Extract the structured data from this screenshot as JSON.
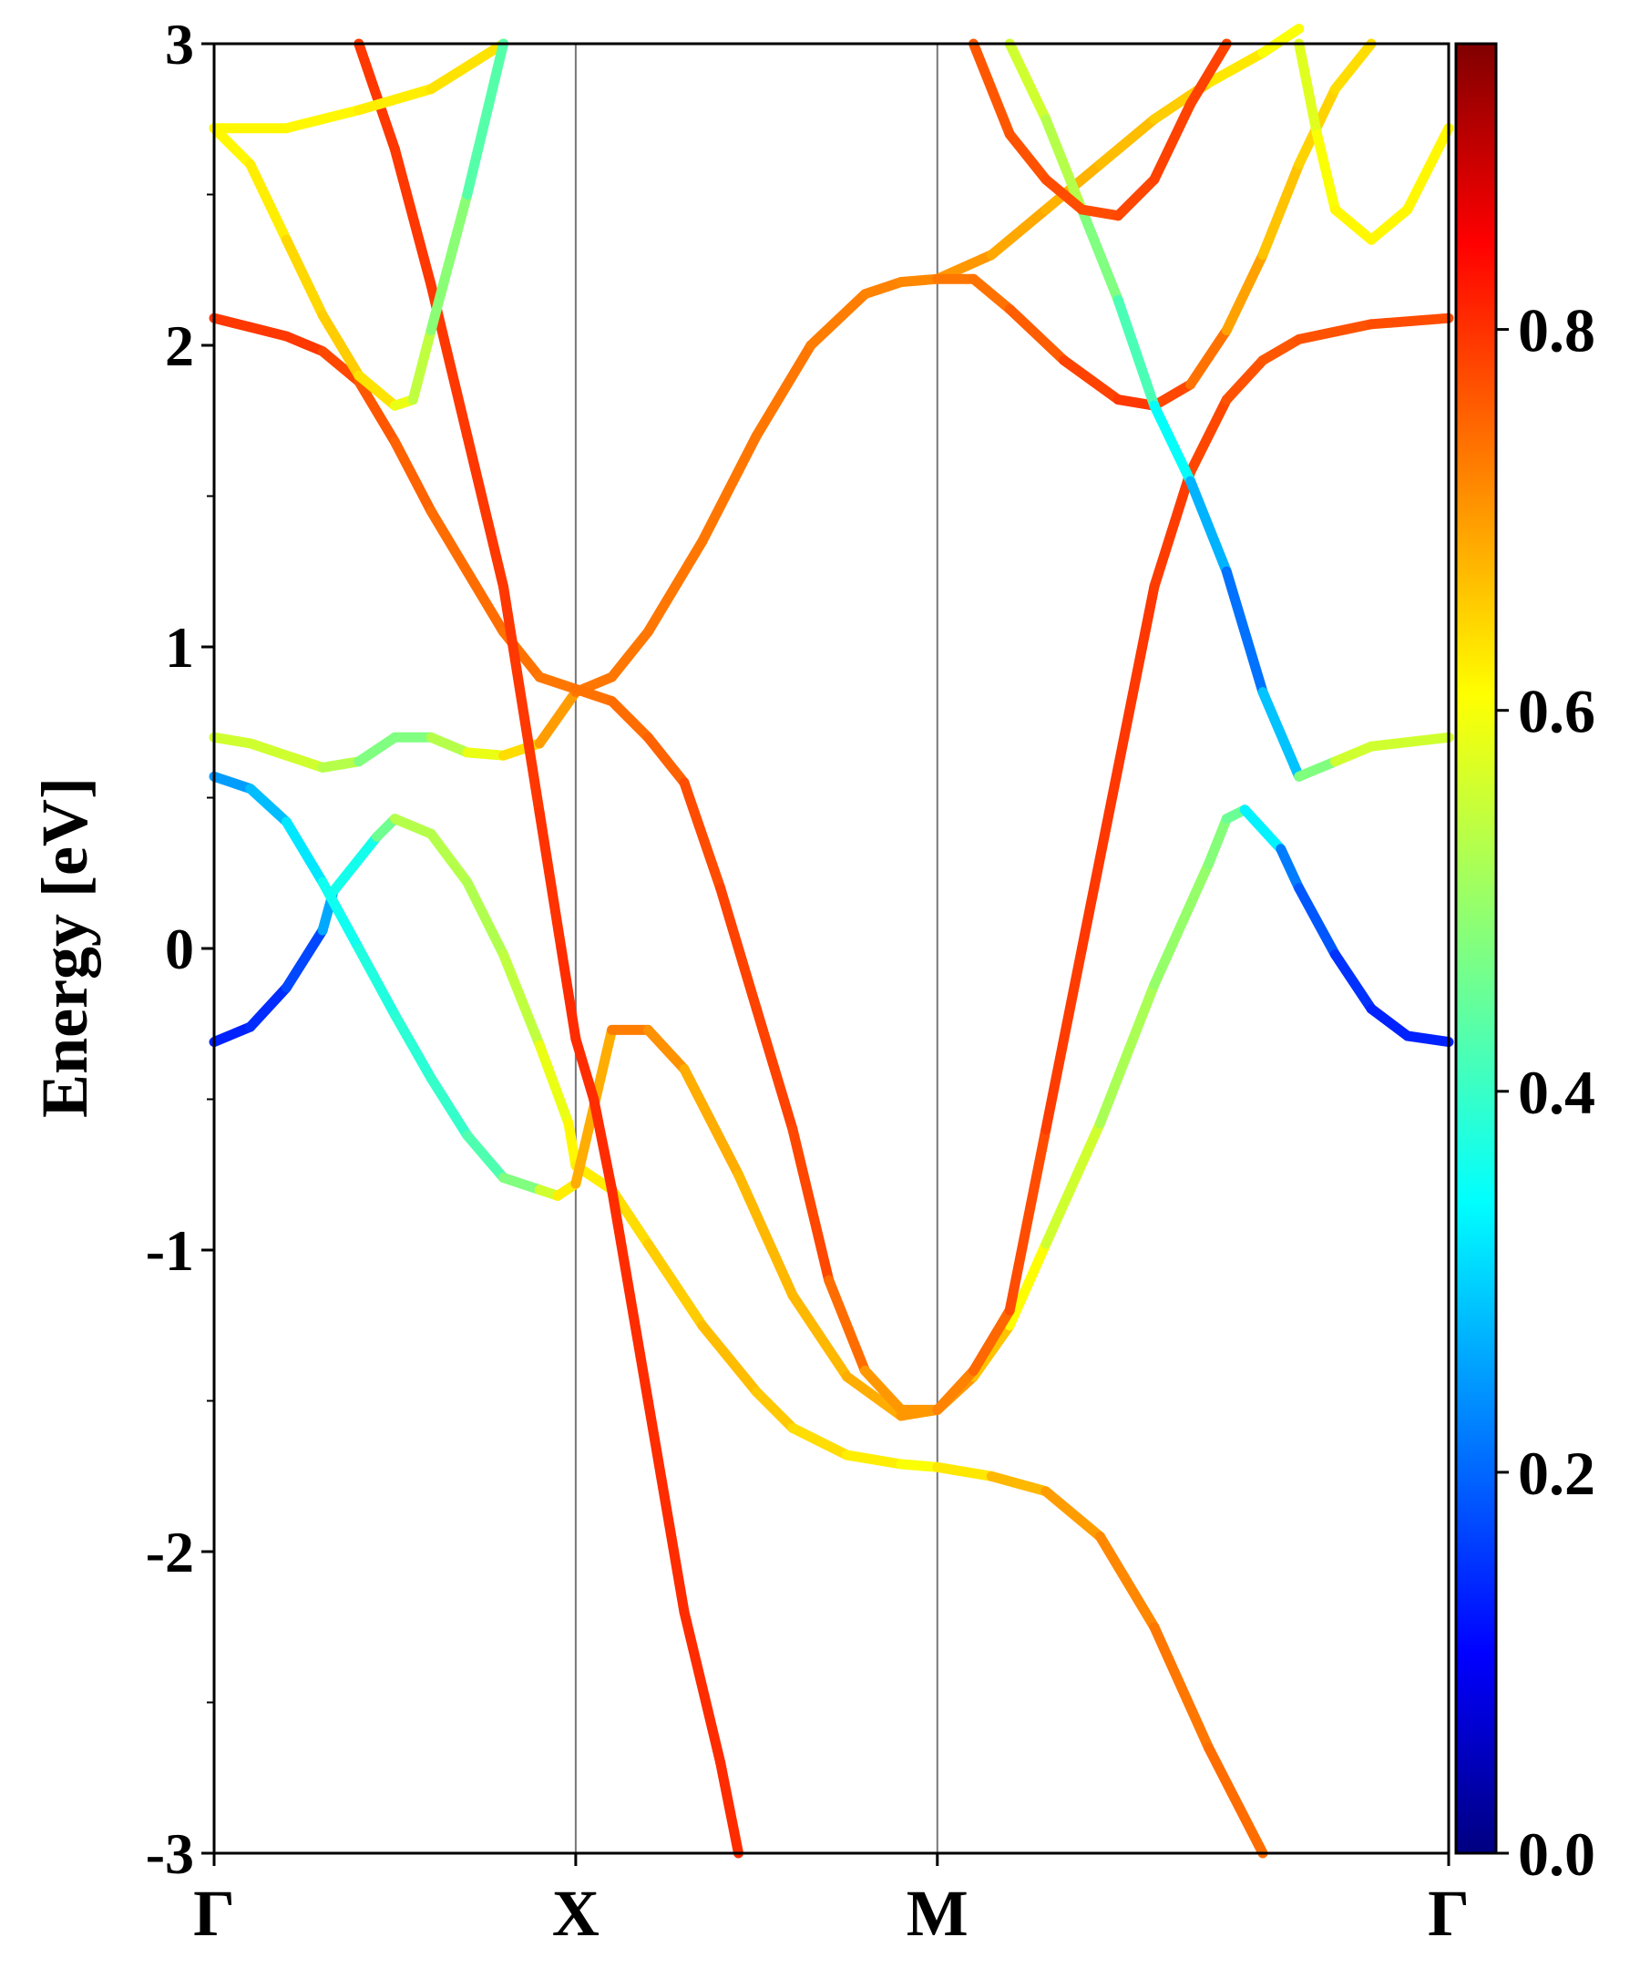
{
  "chart_data": {
    "type": "line",
    "title": "",
    "xlabel": "",
    "ylabel": "Energy [eV]",
    "ylim": [
      -3,
      3
    ],
    "yticks": [
      "3",
      "2",
      "1",
      "0",
      "-1",
      "-2",
      "-3"
    ],
    "y_minor_ticks": [
      -2.5,
      -1.5,
      -0.5,
      0.5,
      1.5,
      2.5
    ],
    "kpath": {
      "labels": [
        "Γ",
        "X",
        "M",
        "Γ"
      ],
      "positions": [
        0,
        1,
        2,
        3.414
      ]
    },
    "grid": false,
    "colorbar": {
      "range": [
        0,
        0.95
      ],
      "ticks": [
        "0.0",
        "0.2",
        "0.4",
        "0.6",
        "0.8"
      ],
      "colormap": "jet"
    },
    "series": [
      {
        "points": [
          [
            0,
            -0.31
          ],
          [
            0.1,
            -0.26
          ],
          [
            0.2,
            -0.13
          ],
          [
            0.3,
            0.06
          ],
          [
            0.33,
            0.19
          ],
          [
            0.45,
            0.37
          ],
          [
            0.5,
            0.43
          ],
          [
            0.6,
            0.38
          ],
          [
            0.7,
            0.22
          ],
          [
            0.8,
            -0.02
          ],
          [
            0.9,
            -0.32
          ],
          [
            0.98,
            -0.58
          ],
          [
            1,
            -0.72
          ],
          [
            1.1,
            -0.8
          ],
          [
            1.2,
            -0.98
          ],
          [
            1.35,
            -1.25
          ],
          [
            1.5,
            -1.47
          ],
          [
            1.6,
            -1.59
          ],
          [
            1.75,
            -1.68
          ],
          [
            1.9,
            -1.71
          ],
          [
            2,
            -1.72
          ],
          [
            2.15,
            -1.75
          ],
          [
            2.3,
            -1.8
          ],
          [
            2.45,
            -1.95
          ],
          [
            2.6,
            -2.25
          ],
          [
            2.75,
            -2.65
          ],
          [
            2.9,
            -3.0
          ]
        ],
        "values": [
          0.15,
          0.15,
          0.17,
          0.2,
          0.35,
          0.4,
          0.52,
          0.53,
          0.52,
          0.52,
          0.55,
          0.6,
          0.6,
          0.62,
          0.63,
          0.65,
          0.66,
          0.63,
          0.62,
          0.6,
          0.58,
          0.65,
          0.67,
          0.7,
          0.71,
          0.73,
          0.73
        ]
      },
      {
        "points": [
          [
            0,
            0.57
          ],
          [
            0.1,
            0.53
          ],
          [
            0.2,
            0.42
          ],
          [
            0.3,
            0.22
          ],
          [
            0.4,
            0.0
          ],
          [
            0.5,
            -0.22
          ],
          [
            0.6,
            -0.43
          ],
          [
            0.7,
            -0.62
          ],
          [
            0.8,
            -0.76
          ],
          [
            0.9,
            -0.8
          ],
          [
            0.95,
            -0.82
          ],
          [
            1,
            -0.78
          ],
          [
            1.1,
            -0.27
          ],
          [
            1.2,
            -0.27
          ],
          [
            1.3,
            -0.4
          ],
          [
            1.45,
            -0.75
          ],
          [
            1.6,
            -1.15
          ],
          [
            1.75,
            -1.42
          ],
          [
            1.9,
            -1.55
          ],
          [
            2,
            -1.53
          ],
          [
            2.1,
            -1.42
          ],
          [
            2.2,
            -1.25
          ],
          [
            2.3,
            -0.98
          ],
          [
            2.45,
            -0.58
          ],
          [
            2.6,
            -0.12
          ],
          [
            2.75,
            0.28
          ],
          [
            2.8,
            0.43
          ],
          [
            2.85,
            0.46
          ],
          [
            2.95,
            0.33
          ],
          [
            3.0,
            0.2
          ],
          [
            3.1,
            -0.02
          ],
          [
            3.2,
            -0.2
          ],
          [
            3.3,
            -0.29
          ],
          [
            3.414,
            -0.31
          ]
        ],
        "values": [
          0.25,
          0.28,
          0.31,
          0.36,
          0.38,
          0.39,
          0.4,
          0.41,
          0.45,
          0.5,
          0.6,
          0.62,
          0.72,
          0.71,
          0.68,
          0.66,
          0.66,
          0.66,
          0.68,
          0.7,
          0.68,
          0.62,
          0.57,
          0.53,
          0.5,
          0.49,
          0.47,
          0.44,
          0.25,
          0.22,
          0.18,
          0.15,
          0.15,
          0.15
        ]
      },
      {
        "points": [
          [
            0,
            0.7
          ],
          [
            0.1,
            0.68
          ],
          [
            0.2,
            0.64
          ],
          [
            0.3,
            0.6
          ],
          [
            0.4,
            0.62
          ],
          [
            0.5,
            0.7
          ],
          [
            0.6,
            0.7
          ],
          [
            0.7,
            0.65
          ],
          [
            0.8,
            0.64
          ],
          [
            0.9,
            0.68
          ],
          [
            1,
            0.85
          ],
          [
            1.1,
            0.9
          ],
          [
            1.2,
            1.05
          ],
          [
            1.35,
            1.35
          ],
          [
            1.5,
            1.7
          ],
          [
            1.65,
            2.0
          ],
          [
            1.8,
            2.17
          ],
          [
            1.9,
            2.21
          ],
          [
            2,
            2.22
          ],
          [
            2.15,
            2.3
          ],
          [
            2.3,
            2.45
          ],
          [
            2.45,
            2.6
          ],
          [
            2.6,
            2.75
          ],
          [
            2.75,
            2.87
          ],
          [
            2.9,
            2.97
          ],
          [
            3.0,
            3.05
          ]
        ],
        "values": [
          0.55,
          0.55,
          0.55,
          0.55,
          0.5,
          0.45,
          0.5,
          0.55,
          0.6,
          0.65,
          0.72,
          0.72,
          0.72,
          0.72,
          0.72,
          0.72,
          0.71,
          0.71,
          0.7,
          0.68,
          0.67,
          0.66,
          0.65,
          0.63,
          0.6,
          0.58
        ]
      },
      {
        "points": [
          [
            0,
            2.09
          ],
          [
            0.1,
            2.06
          ],
          [
            0.2,
            2.03
          ],
          [
            0.3,
            1.98
          ],
          [
            0.4,
            1.88
          ],
          [
            0.5,
            1.68
          ],
          [
            0.6,
            1.45
          ],
          [
            0.7,
            1.25
          ],
          [
            0.8,
            1.05
          ],
          [
            0.9,
            0.9
          ],
          [
            1,
            0.86
          ],
          [
            1.1,
            0.82
          ],
          [
            1.2,
            0.7
          ],
          [
            1.3,
            0.55
          ],
          [
            1.4,
            0.2
          ],
          [
            1.5,
            -0.2
          ],
          [
            1.6,
            -0.6
          ],
          [
            1.7,
            -1.1
          ],
          [
            1.8,
            -1.4
          ],
          [
            1.9,
            -1.53
          ],
          [
            2,
            -1.53
          ],
          [
            2.1,
            -1.4
          ],
          [
            2.2,
            -1.2
          ],
          [
            2.3,
            -0.6
          ],
          [
            2.4,
            0.0
          ],
          [
            2.5,
            0.6
          ],
          [
            2.6,
            1.2
          ],
          [
            2.7,
            1.58
          ],
          [
            2.8,
            1.82
          ],
          [
            2.9,
            1.95
          ],
          [
            3.0,
            2.02
          ],
          [
            3.2,
            2.07
          ],
          [
            3.414,
            2.09
          ]
        ],
        "values": [
          0.78,
          0.78,
          0.78,
          0.78,
          0.75,
          0.75,
          0.73,
          0.73,
          0.73,
          0.72,
          0.72,
          0.73,
          0.73,
          0.75,
          0.77,
          0.77,
          0.77,
          0.76,
          0.7,
          0.68,
          0.7,
          0.72,
          0.75,
          0.77,
          0.78,
          0.78,
          0.78,
          0.77,
          0.76,
          0.75,
          0.75,
          0.76,
          0.76
        ]
      },
      {
        "points": [
          [
            0.4,
            3.0
          ],
          [
            0.5,
            2.65
          ],
          [
            0.6,
            2.2
          ],
          [
            0.7,
            1.7
          ],
          [
            0.8,
            1.2
          ],
          [
            0.9,
            0.45
          ],
          [
            0.96,
            0.0
          ],
          [
            1,
            -0.3
          ],
          [
            1.05,
            -0.5
          ],
          [
            1.1,
            -0.8
          ],
          [
            1.2,
            -1.5
          ],
          [
            1.3,
            -2.2
          ],
          [
            1.4,
            -2.7
          ],
          [
            1.45,
            -3.0
          ]
        ],
        "values": [
          0.78,
          0.78,
          0.78,
          0.78,
          0.78,
          0.78,
          0.79,
          0.79,
          0.79,
          0.79,
          0.79,
          0.79,
          0.79,
          0.79
        ]
      },
      {
        "points": [
          [
            0,
            2.72
          ],
          [
            0.2,
            2.72
          ],
          [
            0.4,
            2.78
          ],
          [
            0.6,
            2.85
          ],
          [
            0.8,
            3.0
          ]
        ],
        "values": [
          0.6,
          0.6,
          0.6,
          0.62,
          0.62
        ]
      },
      {
        "points": [
          [
            0,
            2.72
          ],
          [
            0.1,
            2.6
          ],
          [
            0.2,
            2.35
          ],
          [
            0.3,
            2.1
          ],
          [
            0.4,
            1.9
          ],
          [
            0.5,
            1.8
          ],
          [
            0.55,
            1.82
          ],
          [
            0.6,
            2.05
          ],
          [
            0.7,
            2.5
          ],
          [
            0.8,
            3.0
          ]
        ],
        "values": [
          0.6,
          0.6,
          0.62,
          0.64,
          0.64,
          0.6,
          0.55,
          0.52,
          0.45,
          0.42
        ]
      },
      {
        "points": [
          [
            2,
            2.22
          ],
          [
            2.1,
            2.22
          ],
          [
            2.2,
            2.12
          ],
          [
            2.35,
            1.95
          ],
          [
            2.5,
            1.82
          ],
          [
            2.6,
            1.8
          ],
          [
            2.7,
            1.87
          ],
          [
            2.8,
            2.05
          ],
          [
            2.9,
            2.3
          ],
          [
            3.0,
            2.6
          ],
          [
            3.1,
            2.85
          ],
          [
            3.2,
            3.0
          ]
        ],
        "values": [
          0.72,
          0.72,
          0.73,
          0.76,
          0.78,
          0.78,
          0.75,
          0.7,
          0.66,
          0.64,
          0.63,
          0.62
        ]
      },
      {
        "points": [
          [
            2.2,
            3.0
          ],
          [
            2.3,
            2.75
          ],
          [
            2.4,
            2.45
          ],
          [
            2.5,
            2.15
          ],
          [
            2.6,
            1.8
          ],
          [
            2.7,
            1.55
          ],
          [
            2.8,
            1.25
          ],
          [
            2.9,
            0.85
          ],
          [
            3.0,
            0.57
          ],
          [
            3.1,
            0.62
          ],
          [
            3.2,
            0.67
          ],
          [
            3.414,
            0.7
          ]
        ],
        "values": [
          0.55,
          0.55,
          0.5,
          0.45,
          0.4,
          0.32,
          0.25,
          0.2,
          0.4,
          0.55,
          0.55,
          0.55
        ]
      },
      {
        "points": [
          [
            3.0,
            3.0
          ],
          [
            3.05,
            2.7
          ],
          [
            3.1,
            2.45
          ],
          [
            3.2,
            2.35
          ],
          [
            3.3,
            2.45
          ],
          [
            3.414,
            2.72
          ]
        ],
        "values": [
          0.55,
          0.58,
          0.6,
          0.6,
          0.6,
          0.6
        ]
      },
      {
        "points": [
          [
            2.1,
            3.0
          ],
          [
            2.2,
            2.7
          ],
          [
            2.3,
            2.55
          ],
          [
            2.4,
            2.45
          ],
          [
            2.5,
            2.43
          ],
          [
            2.6,
            2.55
          ],
          [
            2.7,
            2.8
          ],
          [
            2.8,
            3.0
          ]
        ],
        "values": [
          0.75,
          0.75,
          0.76,
          0.76,
          0.76,
          0.77,
          0.77,
          0.77
        ]
      }
    ]
  }
}
